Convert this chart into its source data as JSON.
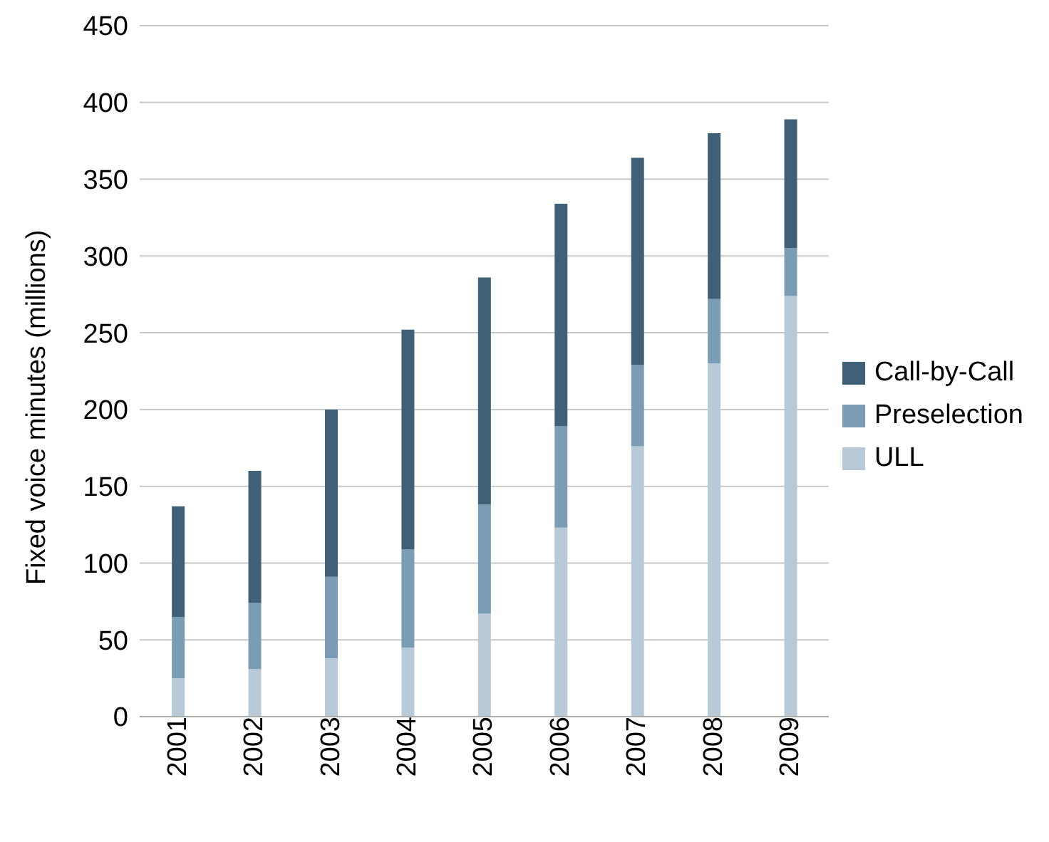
{
  "chart_data": {
    "type": "bar",
    "stacked": true,
    "ylabel": "Fixed voice minutes (millions)",
    "categories": [
      "2001",
      "2002",
      "2003",
      "2004",
      "2005",
      "2006",
      "2007",
      "2008",
      "2009"
    ],
    "series": [
      {
        "name": "ULL",
        "color": "#b8cad8",
        "values": [
          25,
          31,
          38,
          45,
          67,
          123,
          176,
          230,
          274
        ]
      },
      {
        "name": "Preselection",
        "color": "#7a9db5",
        "values": [
          40,
          43,
          53,
          64,
          71,
          66,
          53,
          42,
          31
        ]
      },
      {
        "name": "Call-by-Call",
        "color": "#3f6077",
        "values": [
          72,
          86,
          109,
          143,
          148,
          145,
          135,
          108,
          84
        ]
      }
    ],
    "ylim": [
      0,
      450
    ],
    "yticks": [
      0,
      50,
      100,
      150,
      200,
      250,
      300,
      350,
      400,
      450
    ],
    "grid": "y",
    "legend": "right"
  }
}
